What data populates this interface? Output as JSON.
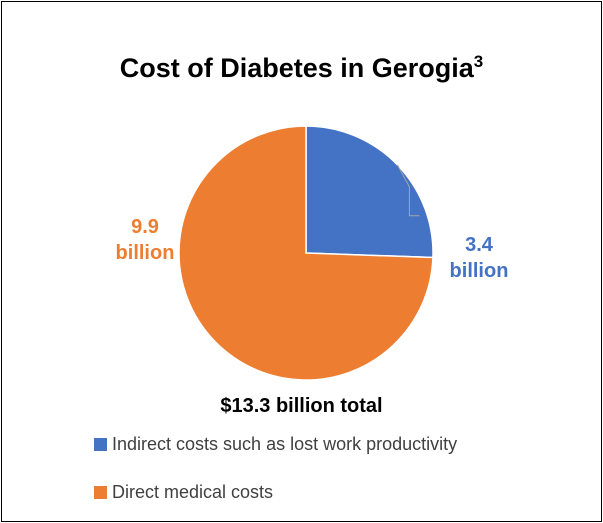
{
  "chart_data": {
    "type": "pie",
    "title": "Cost of Diabetes in Gerogia",
    "title_superscript": "3",
    "subtitle": "$13.3 billion total",
    "categories": [
      "Indirect costs such as lost work productivity",
      "Direct medical costs"
    ],
    "values": [
      3.4,
      9.9
    ],
    "data_labels": [
      [
        "3.4",
        "billion"
      ],
      [
        "9.9",
        "billion"
      ]
    ],
    "colors": [
      "#4472C4",
      "#ED7D31"
    ],
    "legend_position": "bottom"
  }
}
